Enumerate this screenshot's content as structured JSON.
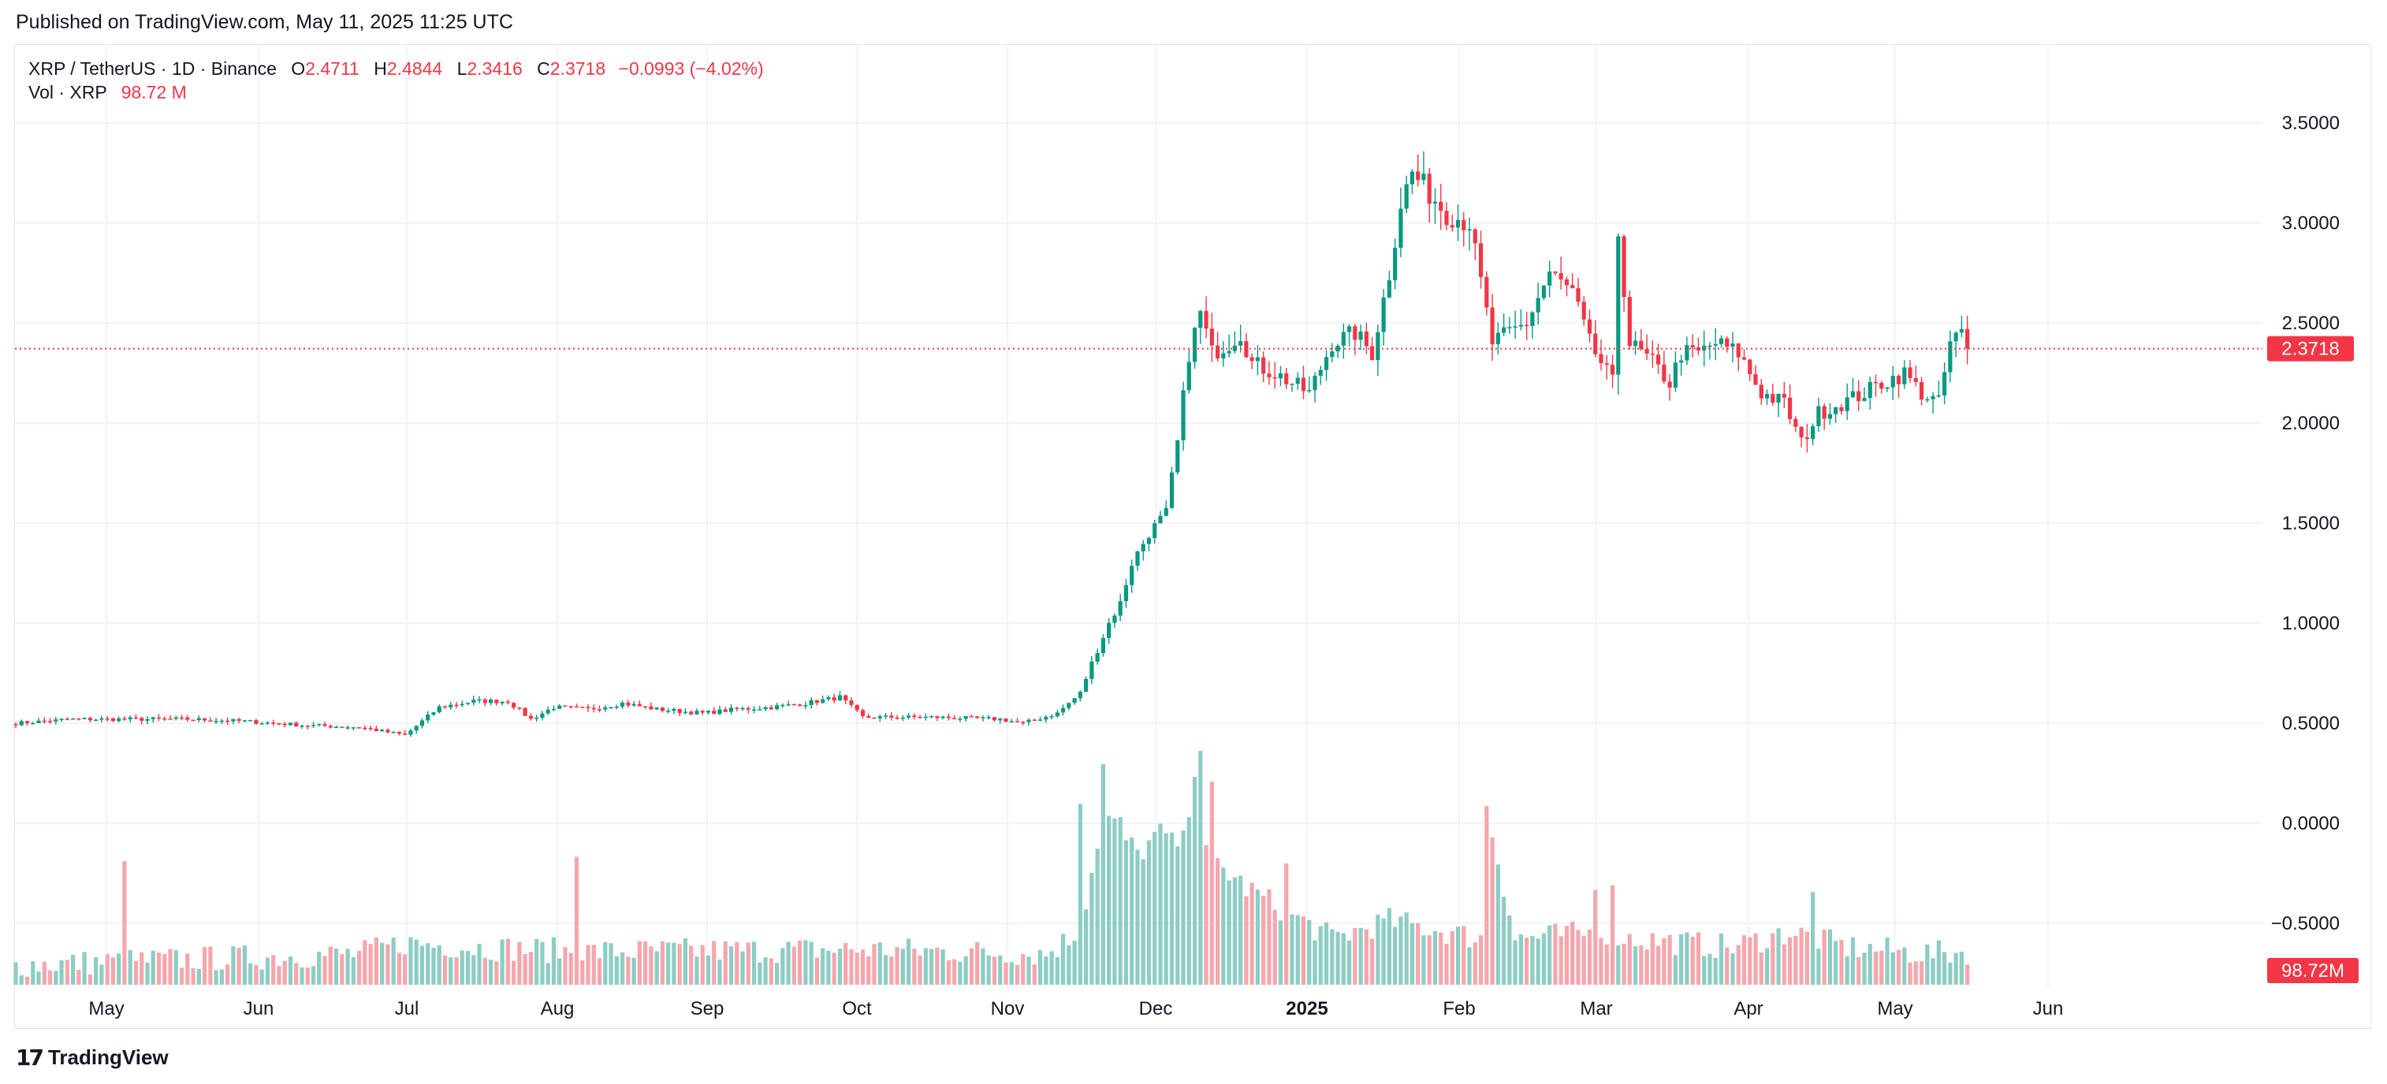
{
  "header": {
    "published": "Published on TradingView.com, May 11, 2025 11:25 UTC"
  },
  "legend": {
    "symbol": "XRP / TetherUS · 1D · Binance",
    "open_key": "O",
    "open": "2.4711",
    "high_key": "H",
    "high": "2.4844",
    "low_key": "L",
    "low": "2.3416",
    "close_key": "C",
    "close": "2.3718",
    "change": "−0.0993 (−4.02%)",
    "vol_label": "Vol · XRP",
    "vol_value": "98.72 M"
  },
  "footer": {
    "brand": "TradingView",
    "logo_icon": "tradingview-logo-icon"
  },
  "colors": {
    "up": "#089981",
    "down": "#f23645",
    "vol_up": "#8ccdc4",
    "vol_down": "#f5a6ac",
    "grid": "#f0f3fa"
  },
  "chart_data": {
    "type": "candlestick",
    "symbol": "XRP/USDT",
    "interval": "1D",
    "y_ticks": [
      "3.5000",
      "3.0000",
      "2.5000",
      "2.0000",
      "1.5000",
      "1.0000",
      "0.5000",
      "0.0000",
      "−0.5000"
    ],
    "x_ticks": [
      "May",
      "Jun",
      "Jul",
      "Aug",
      "Sep",
      "Oct",
      "Nov",
      "Dec",
      "2025",
      "Feb",
      "Mar",
      "Apr",
      "May",
      "Jun"
    ],
    "x_tick_bold": [
      false,
      false,
      false,
      false,
      false,
      false,
      false,
      false,
      true,
      false,
      false,
      false,
      false,
      false
    ],
    "ylim": [
      -0.8,
      3.85
    ],
    "last_price_label": "2.3718",
    "last_price": 2.3718,
    "last_volume_label": "98.72M",
    "price_keypoints": [
      [
        0,
        0.5
      ],
      [
        10,
        0.52
      ],
      [
        20,
        0.52
      ],
      [
        30,
        0.52
      ],
      [
        40,
        0.51
      ],
      [
        50,
        0.49
      ],
      [
        60,
        0.48
      ],
      [
        68,
        0.44
      ],
      [
        74,
        0.58
      ],
      [
        80,
        0.61
      ],
      [
        86,
        0.61
      ],
      [
        90,
        0.52
      ],
      [
        94,
        0.58
      ],
      [
        100,
        0.57
      ],
      [
        106,
        0.6
      ],
      [
        112,
        0.57
      ],
      [
        120,
        0.55
      ],
      [
        126,
        0.57
      ],
      [
        132,
        0.58
      ],
      [
        138,
        0.6
      ],
      [
        144,
        0.63
      ],
      [
        148,
        0.53
      ],
      [
        160,
        0.53
      ],
      [
        172,
        0.52
      ],
      [
        176,
        0.5
      ],
      [
        182,
        0.55
      ],
      [
        186,
        0.65
      ],
      [
        188,
        0.8
      ],
      [
        191,
        1.0
      ],
      [
        193,
        1.1
      ],
      [
        195,
        1.3
      ],
      [
        198,
        1.45
      ],
      [
        201,
        1.55
      ],
      [
        203,
        1.9
      ],
      [
        205,
        2.35
      ],
      [
        207,
        2.55
      ],
      [
        209,
        2.35
      ],
      [
        212,
        2.4
      ],
      [
        214,
        2.45
      ],
      [
        216,
        2.3
      ],
      [
        220,
        2.25
      ],
      [
        226,
        2.15
      ],
      [
        230,
        2.4
      ],
      [
        234,
        2.45
      ],
      [
        237,
        2.35
      ],
      [
        240,
        2.75
      ],
      [
        242,
        3.1
      ],
      [
        244,
        3.25
      ],
      [
        247,
        3.15
      ],
      [
        250,
        3.05
      ],
      [
        254,
        3.0
      ],
      [
        256,
        2.7
      ],
      [
        258,
        2.4
      ],
      [
        261,
        2.45
      ],
      [
        264,
        2.5
      ],
      [
        268,
        2.75
      ],
      [
        270,
        2.7
      ],
      [
        272,
        2.65
      ],
      [
        275,
        2.4
      ],
      [
        279,
        2.2
      ],
      [
        280,
        2.95
      ],
      [
        282,
        2.4
      ],
      [
        286,
        2.3
      ],
      [
        289,
        2.2
      ],
      [
        291,
        2.35
      ],
      [
        294,
        2.35
      ],
      [
        297,
        2.4
      ],
      [
        301,
        2.35
      ],
      [
        305,
        2.15
      ],
      [
        309,
        2.1
      ],
      [
        312,
        1.9
      ],
      [
        315,
        2.05
      ],
      [
        319,
        2.1
      ],
      [
        323,
        2.15
      ],
      [
        326,
        2.2
      ],
      [
        330,
        2.25
      ],
      [
        333,
        2.15
      ],
      [
        336,
        2.1
      ],
      [
        338,
        2.4
      ],
      [
        340,
        2.45
      ],
      [
        341,
        2.37
      ]
    ],
    "volume_keypoints": [
      [
        0,
        0.0
      ],
      [
        60,
        0.05
      ],
      [
        68,
        0.1
      ],
      [
        80,
        0.08
      ],
      [
        100,
        0.06
      ],
      [
        150,
        0.07
      ],
      [
        180,
        0.05
      ],
      [
        186,
        0.15
      ],
      [
        190,
        0.7
      ],
      [
        196,
        0.5
      ],
      [
        200,
        0.6
      ],
      [
        204,
        0.55
      ],
      [
        206,
        0.9
      ],
      [
        208,
        0.5
      ],
      [
        215,
        0.35
      ],
      [
        230,
        0.12
      ],
      [
        240,
        0.2
      ],
      [
        256,
        0.12
      ],
      [
        258,
        0.6
      ],
      [
        262,
        0.12
      ],
      [
        278,
        0.15
      ],
      [
        282,
        0.12
      ],
      [
        300,
        0.08
      ],
      [
        310,
        0.15
      ],
      [
        320,
        0.08
      ],
      [
        335,
        0.05
      ],
      [
        341,
        0.06
      ]
    ],
    "volume_spikes": [
      [
        19,
        0.56
      ],
      [
        98,
        0.58
      ],
      [
        186,
        0.82
      ],
      [
        190,
        1.0
      ],
      [
        193,
        0.76
      ],
      [
        200,
        0.73
      ],
      [
        202,
        0.69
      ],
      [
        207,
        1.06
      ],
      [
        209,
        0.92
      ],
      [
        222,
        0.55
      ],
      [
        257,
        0.81
      ],
      [
        276,
        0.43
      ],
      [
        279,
        0.45
      ],
      [
        314,
        0.42
      ]
    ]
  }
}
